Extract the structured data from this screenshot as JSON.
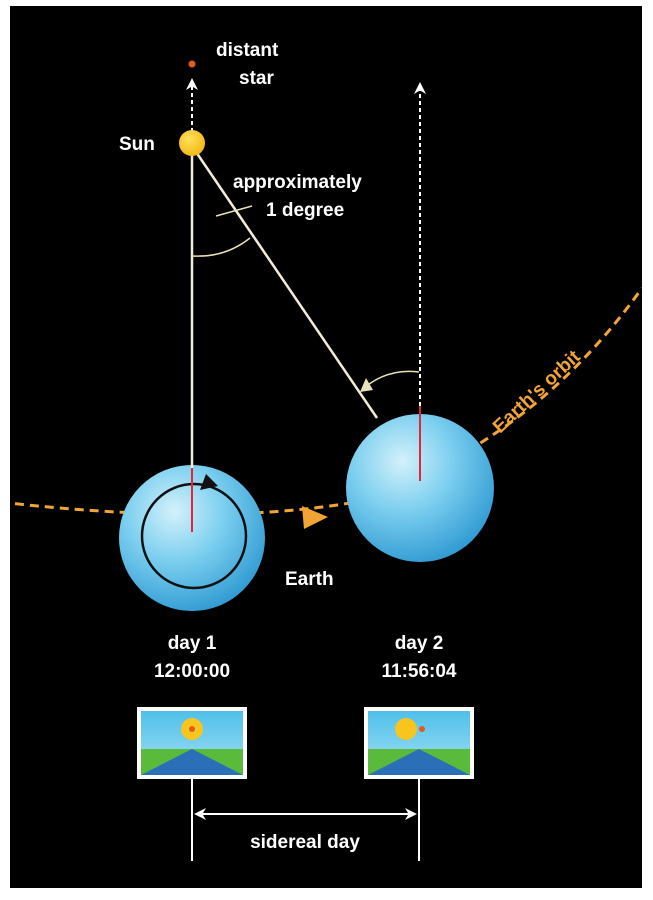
{
  "labels": {
    "distant_star_line1": "distant",
    "distant_star_line2": "star",
    "sun": "Sun",
    "angle_line1": "approximately",
    "angle_line2": "1 degree",
    "earths_orbit": "Earth's orbit",
    "earth": "Earth",
    "day1_title": "day 1",
    "day1_time": "12:00:00",
    "day2_title": "day 2",
    "day2_time": "11:56:04",
    "sidereal_day": "sidereal day"
  },
  "colors": {
    "background": "#000000",
    "sun": "#f7c51e",
    "star": "#e8571e",
    "orbit": "#f2a535",
    "earth_light": "#bfe8f8",
    "earth_dark": "#2d9fd6",
    "meridian": "#e0263a",
    "sky": "#5ec6ec",
    "grass": "#5aba3c",
    "mountain": "#2b6fb8"
  }
}
